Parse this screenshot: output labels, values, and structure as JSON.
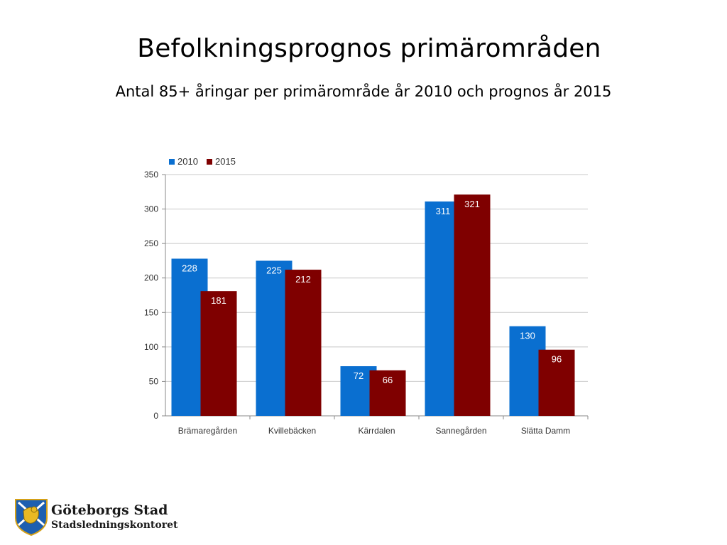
{
  "slide": {
    "title": "Befolkningsprognos primärområden",
    "subtitle": "Antal 85+ åringar per primärområde år 2010 och prognos år 2015"
  },
  "logo": {
    "org_name": "Göteborgs Stad",
    "department": "Stadsledningskontoret"
  },
  "chart_data": {
    "type": "bar",
    "title": "",
    "xlabel": "",
    "ylabel": "",
    "categories": [
      "Brämaregården",
      "Kvillebäcken",
      "Kärrdalen",
      "Sannegården",
      "Slätta Damm"
    ],
    "series": [
      {
        "name": "2010",
        "values": [
          228,
          225,
          72,
          311,
          130
        ],
        "color": "#0a6fd0"
      },
      {
        "name": "2015",
        "values": [
          181,
          212,
          66,
          321,
          96
        ],
        "color": "#7f0000"
      }
    ],
    "ylim": [
      0,
      350
    ],
    "yticks": [
      0,
      50,
      100,
      150,
      200,
      250,
      300,
      350
    ],
    "grid": true,
    "legend": "top-left",
    "data_labels": true
  }
}
